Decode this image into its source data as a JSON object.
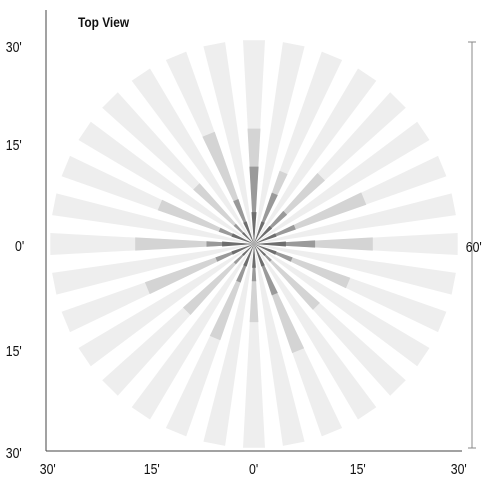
{
  "title": "Top View",
  "y_ticks": [
    "30'",
    "15'",
    "0'",
    "15'",
    "30'"
  ],
  "x_ticks": [
    "30'",
    "15'",
    "0'",
    "15'",
    "30'"
  ],
  "width_label": "60'",
  "colors": {
    "pattern_light": "#eeeeee",
    "pattern_mid": "#d4d4d4",
    "pattern_dark": "#9a9a9a",
    "axis": "#444444"
  },
  "pattern": {
    "ring_levels_ft": [
      30,
      24.1,
      13.5,
      7.4
    ],
    "mid_lengths_ft": [
      17,
      11.4,
      14,
      17.5,
      17.5,
      15,
      13,
      17,
      11.5,
      15,
      14,
      17,
      17.5,
      15,
      12,
      17.5
    ],
    "dark_lengths_ft": [
      11.4,
      8,
      6.5,
      6.5,
      9,
      6,
      3.5,
      8,
      5.5,
      6,
      4,
      6,
      7,
      5.5,
      4,
      7
    ],
    "small_lengths_ft": [
      4.7,
      3.5,
      3.5,
      3.5,
      4.7,
      3.5,
      2.3,
      3.5,
      3.5,
      3.5,
      2.3,
      3.5,
      4.7,
      3.5,
      2.3,
      3.5
    ]
  }
}
